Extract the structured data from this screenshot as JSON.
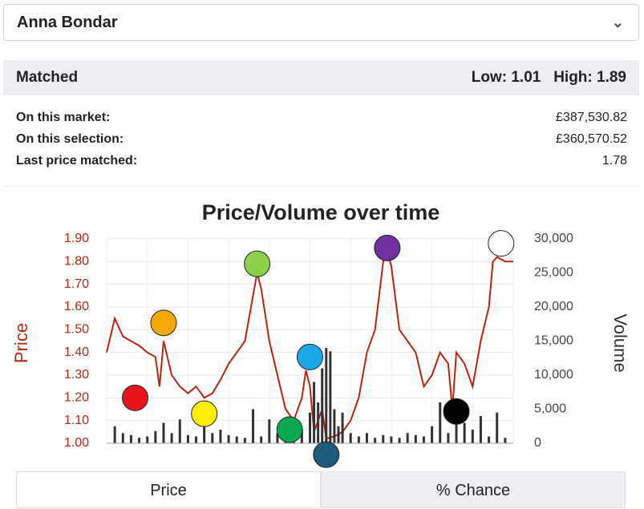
{
  "header": {
    "selection": "Anna Bondar"
  },
  "summary": {
    "label": "Matched",
    "low_label": "Low:",
    "low": "1.01",
    "high_label": "High:",
    "high": "1.89"
  },
  "stats": [
    {
      "label": "On this market:",
      "value": "£387,530.82"
    },
    {
      "label": "On this selection:",
      "value": "£360,570.52"
    },
    {
      "label": "Last price matched:",
      "value": "1.78"
    }
  ],
  "chart_data": {
    "type": "line",
    "title": "Price/Volume over time",
    "ylabel": "Price",
    "y2label": "Volume",
    "xlim": [
      0,
      100
    ],
    "ylim": [
      1.0,
      1.9
    ],
    "yticks": [
      {
        "value": 1.0,
        "label": "1.00"
      },
      {
        "value": 1.1,
        "label": "1.10"
      },
      {
        "value": 1.2,
        "label": "1.20"
      },
      {
        "value": 1.3,
        "label": "1.30"
      },
      {
        "value": 1.4,
        "label": "1.40"
      },
      {
        "value": 1.5,
        "label": "1.50"
      },
      {
        "value": 1.6,
        "label": "1.60"
      },
      {
        "value": 1.7,
        "label": "1.70"
      },
      {
        "value": 1.8,
        "label": "1.80"
      },
      {
        "value": 1.9,
        "label": "1.90"
      }
    ],
    "y2lim": [
      0,
      30000
    ],
    "y2ticks": [
      0,
      {
        "value": 5000,
        "label": "5,000"
      },
      {
        "value": 10000,
        "label": "10,000"
      },
      {
        "value": 15000,
        "label": "15,000"
      },
      {
        "value": 20000,
        "label": "20,000"
      },
      {
        "value": 25000,
        "label": "25,000"
      },
      {
        "value": 30000,
        "label": "30,000"
      }
    ],
    "grid": true,
    "series": [
      {
        "name": "Price",
        "color": "#b5260e",
        "x": [
          0,
          2,
          4,
          6,
          8,
          10,
          12,
          13,
          14,
          16,
          18,
          20,
          22,
          24,
          26,
          28,
          30,
          32,
          34,
          36,
          37,
          38,
          40,
          42,
          44,
          46,
          48,
          49,
          50,
          51,
          53,
          54,
          56,
          58,
          60,
          62,
          64,
          66,
          68,
          69,
          70,
          72,
          74,
          76,
          78,
          80,
          82,
          84,
          85,
          86,
          88,
          90,
          92,
          94,
          95,
          96,
          98,
          100
        ],
        "values": [
          1.4,
          1.55,
          1.47,
          1.45,
          1.43,
          1.4,
          1.38,
          1.25,
          1.45,
          1.3,
          1.25,
          1.22,
          1.25,
          1.2,
          1.22,
          1.28,
          1.35,
          1.4,
          1.45,
          1.65,
          1.75,
          1.68,
          1.45,
          1.3,
          1.15,
          1.1,
          1.2,
          1.32,
          1.25,
          1.05,
          1.15,
          1.02,
          1.03,
          1.05,
          1.1,
          1.2,
          1.4,
          1.5,
          1.8,
          1.85,
          1.78,
          1.5,
          1.45,
          1.4,
          1.25,
          1.3,
          1.4,
          1.35,
          1.15,
          1.4,
          1.35,
          1.25,
          1.45,
          1.6,
          1.8,
          1.82,
          1.8,
          1.8
        ]
      },
      {
        "name": "Volume",
        "color": "#333333",
        "axis": "y2",
        "x": [
          2,
          4,
          6,
          8,
          10,
          12,
          14,
          16,
          18,
          20,
          22,
          24,
          26,
          28,
          30,
          32,
          34,
          36,
          38,
          40,
          42,
          44,
          46,
          48,
          50,
          51,
          52,
          53,
          54,
          55,
          56,
          57,
          58,
          60,
          62,
          64,
          66,
          68,
          70,
          72,
          74,
          76,
          78,
          80,
          82,
          84,
          86,
          88,
          90,
          92,
          94,
          96,
          98
        ],
        "values": [
          2500,
          1500,
          1200,
          800,
          1000,
          1800,
          3000,
          1500,
          3500,
          1200,
          1000,
          2500,
          1500,
          2000,
          1200,
          1000,
          800,
          5000,
          1000,
          3500,
          1500,
          1200,
          3000,
          2000,
          4500,
          9000,
          6000,
          11000,
          14000,
          13500,
          5000,
          2500,
          4500,
          1500,
          1000,
          1500,
          800,
          1200,
          1000,
          800,
          1500,
          1200,
          1000,
          2500,
          6000,
          1500,
          5000,
          3000,
          2000,
          4000,
          1000,
          4500,
          800
        ]
      }
    ],
    "markers": {
      "x": [
        7,
        14,
        24,
        37,
        45,
        50,
        54,
        69,
        86,
        97
      ],
      "values": [
        1.2,
        1.53,
        1.13,
        1.79,
        1.06,
        1.38,
        0.95,
        1.86,
        1.14,
        1.88
      ],
      "colors": [
        "#e8141c",
        "#f5a800",
        "#ffef00",
        "#8dd14b",
        "#0aa84f",
        "#1ba7e8",
        "#1f5b7a",
        "#7030a0",
        "#000000",
        "#ffffff"
      ]
    }
  },
  "tabs": [
    "Price",
    "% Chance"
  ]
}
